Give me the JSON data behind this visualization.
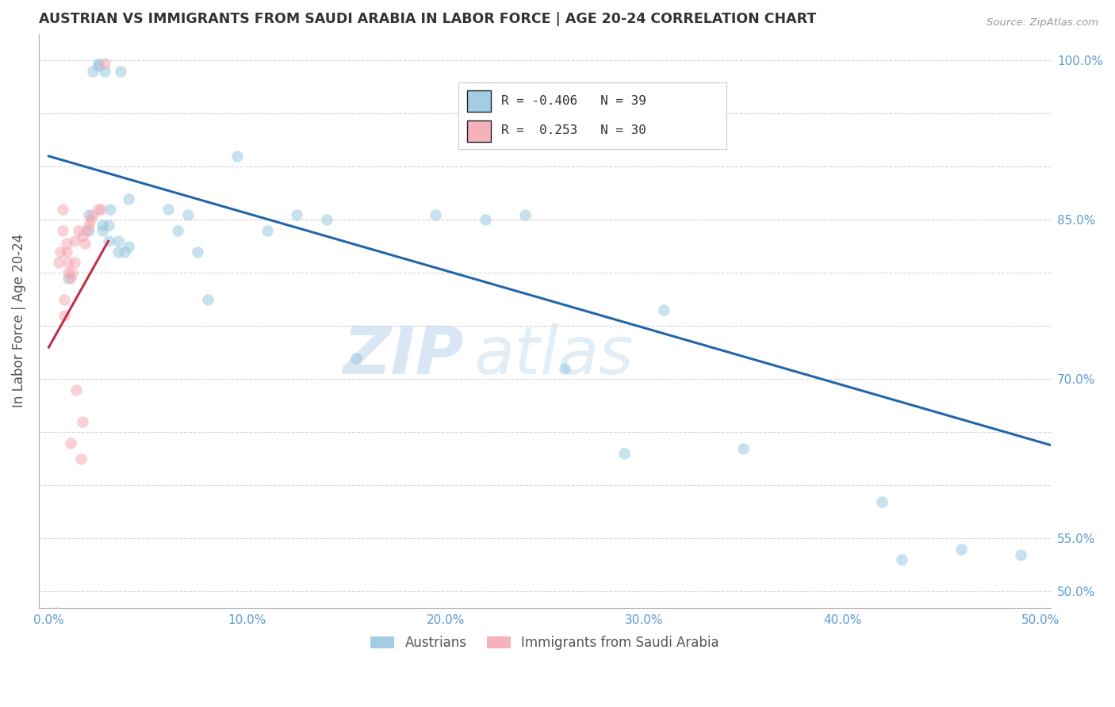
{
  "title": "AUSTRIAN VS IMMIGRANTS FROM SAUDI ARABIA IN LABOR FORCE | AGE 20-24 CORRELATION CHART",
  "source": "Source: ZipAtlas.com",
  "ylabel": "In Labor Force | Age 20-24",
  "xlim": [
    -0.005,
    0.505
  ],
  "ylim": [
    0.485,
    1.025
  ],
  "xticks": [
    0.0,
    0.1,
    0.2,
    0.3,
    0.4,
    0.5
  ],
  "xtick_labels": [
    "0.0%",
    "10.0%",
    "20.0%",
    "30.0%",
    "40.0%",
    "50.0%"
  ],
  "yticks": [
    0.5,
    0.55,
    0.6,
    0.65,
    0.7,
    0.75,
    0.8,
    0.85,
    0.9,
    0.95,
    1.0
  ],
  "ytick_labels_right": [
    "50.0%",
    "55.0%",
    "",
    "",
    "70.0%",
    "",
    "",
    "85.0%",
    "",
    "",
    "100.0%"
  ],
  "blue_color": "#92c5de",
  "blue_line_color": "#2166ac",
  "pink_color": "#f4a5b0",
  "pink_line_color": "#c0304a",
  "legend_blue_R": "-0.406",
  "legend_blue_N": "39",
  "legend_pink_R": "0.253",
  "legend_pink_N": "30",
  "watermark_zip": "ZIP",
  "watermark_atlas": "atlas",
  "background_color": "#ffffff",
  "blue_x": [
    0.01,
    0.02,
    0.02,
    0.022,
    0.025,
    0.025,
    0.027,
    0.027,
    0.028,
    0.03,
    0.03,
    0.031,
    0.035,
    0.035,
    0.036,
    0.038,
    0.04,
    0.04,
    0.06,
    0.065,
    0.07,
    0.075,
    0.08,
    0.095,
    0.11,
    0.125,
    0.14,
    0.155,
    0.195,
    0.22,
    0.24,
    0.26,
    0.29,
    0.31,
    0.35,
    0.42,
    0.43,
    0.46,
    0.49
  ],
  "blue_y": [
    0.795,
    0.84,
    0.855,
    0.99,
    0.995,
    0.997,
    0.84,
    0.845,
    0.99,
    0.83,
    0.845,
    0.86,
    0.82,
    0.83,
    0.99,
    0.82,
    0.825,
    0.87,
    0.86,
    0.84,
    0.855,
    0.82,
    0.775,
    0.91,
    0.84,
    0.855,
    0.85,
    0.72,
    0.855,
    0.85,
    0.855,
    0.71,
    0.63,
    0.765,
    0.635,
    0.585,
    0.53,
    0.54,
    0.535
  ],
  "pink_x": [
    0.003,
    0.004,
    0.005,
    0.006,
    0.007,
    0.007,
    0.008,
    0.008,
    0.009,
    0.009,
    0.01,
    0.01,
    0.011,
    0.011,
    0.012,
    0.013,
    0.013,
    0.014,
    0.015,
    0.016,
    0.017,
    0.017,
    0.018,
    0.019,
    0.02,
    0.021,
    0.022,
    0.025,
    0.026,
    0.028
  ],
  "pink_y": [
    0.472,
    0.48,
    0.81,
    0.82,
    0.84,
    0.86,
    0.76,
    0.775,
    0.82,
    0.828,
    0.8,
    0.81,
    0.64,
    0.795,
    0.8,
    0.81,
    0.83,
    0.69,
    0.84,
    0.625,
    0.66,
    0.835,
    0.828,
    0.84,
    0.845,
    0.85,
    0.855,
    0.86,
    0.86,
    0.997
  ],
  "blue_trendline_x": [
    0.0,
    0.505
  ],
  "blue_trendline_y": [
    0.91,
    0.638
  ],
  "pink_trendline_x": [
    0.0,
    0.03
  ],
  "pink_trendline_y": [
    0.73,
    0.83
  ],
  "marker_size": 110,
  "marker_alpha": 0.5
}
